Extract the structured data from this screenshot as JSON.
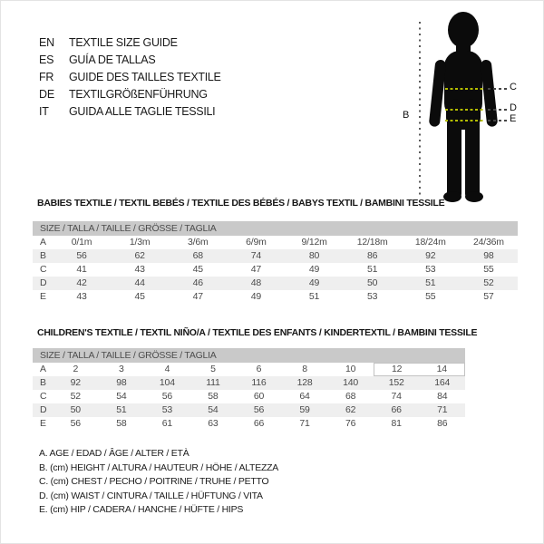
{
  "language_guide": {
    "items": [
      {
        "code": "EN",
        "title": "TEXTILE SIZE GUIDE"
      },
      {
        "code": "ES",
        "title": "GUÍA DE TALLAS"
      },
      {
        "code": "FR",
        "title": "GUIDE DES TAILLES TEXTILE"
      },
      {
        "code": "DE",
        "title": "TEXTILGRÖßENFÜHRUNG"
      },
      {
        "code": "IT",
        "title": "GUIDA ALLE TAGLIE TESSILI"
      }
    ]
  },
  "figure": {
    "labels": {
      "height": "B",
      "chest": "C",
      "waist": "D",
      "hip": "E"
    },
    "colors": {
      "silhouette": "#0b0b0b",
      "measure_dash": "#b3bc00",
      "guide_dash": "#454545"
    }
  },
  "babies_table": {
    "title": "BABIES TEXTILE / TEXTIL BEBÉS / TEXTILE DES BÉBÉS / BABYS TEXTIL / BAMBINI TESSILE",
    "header": "SIZE / TALLA / TAILLE / GRÖSSE / TAGLIA",
    "rows": [
      {
        "label": "A",
        "values": [
          "0/1m",
          "1/3m",
          "3/6m",
          "6/9m",
          "9/12m",
          "12/18m",
          "18/24m",
          "24/36m"
        ]
      },
      {
        "label": "B",
        "values": [
          "56",
          "62",
          "68",
          "74",
          "80",
          "86",
          "92",
          "98"
        ]
      },
      {
        "label": "C",
        "values": [
          "41",
          "43",
          "45",
          "47",
          "49",
          "51",
          "53",
          "55"
        ]
      },
      {
        "label": "D",
        "values": [
          "42",
          "44",
          "46",
          "48",
          "49",
          "50",
          "51",
          "52"
        ]
      },
      {
        "label": "E",
        "values": [
          "43",
          "45",
          "47",
          "49",
          "51",
          "53",
          "55",
          "57"
        ]
      }
    ]
  },
  "children_table": {
    "title": "CHILDREN'S TEXTILE / TEXTIL NIÑO/A / TEXTILE DES ENFANTS / KINDERTEXTIL / BAMBINI TESSILE",
    "header": "SIZE / TALLA / TAILLE / GRÖSSE / TAGLIA",
    "highlight": {
      "row_label": "A",
      "column_indexes": [
        7,
        8
      ]
    },
    "rows": [
      {
        "label": "A",
        "values": [
          "2",
          "3",
          "4",
          "5",
          "6",
          "8",
          "10",
          "12",
          "14"
        ]
      },
      {
        "label": "B",
        "values": [
          "92",
          "98",
          "104",
          "111",
          "116",
          "128",
          "140",
          "152",
          "164"
        ]
      },
      {
        "label": "C",
        "values": [
          "52",
          "54",
          "56",
          "58",
          "60",
          "64",
          "68",
          "74",
          "84"
        ]
      },
      {
        "label": "D",
        "values": [
          "50",
          "51",
          "53",
          "54",
          "56",
          "59",
          "62",
          "66",
          "71"
        ]
      },
      {
        "label": "E",
        "values": [
          "56",
          "58",
          "61",
          "63",
          "66",
          "71",
          "76",
          "81",
          "86"
        ]
      }
    ]
  },
  "legend": {
    "items": [
      "A. AGE / EDAD / ÂGE / ALTER / ETÀ",
      "B. (cm) HEIGHT / ALTURA / HAUTEUR / HÖHE / ALTEZZA",
      "C. (cm) CHEST / PECHO / POITRINE / TRUHE / PETTO",
      "D. (cm) WAIST / CINTURA / TAILLE / HÜFTUNG / VITA",
      "E. (cm) HIP / CADERA / HANCHE / HÜFTE / HIPS"
    ]
  }
}
